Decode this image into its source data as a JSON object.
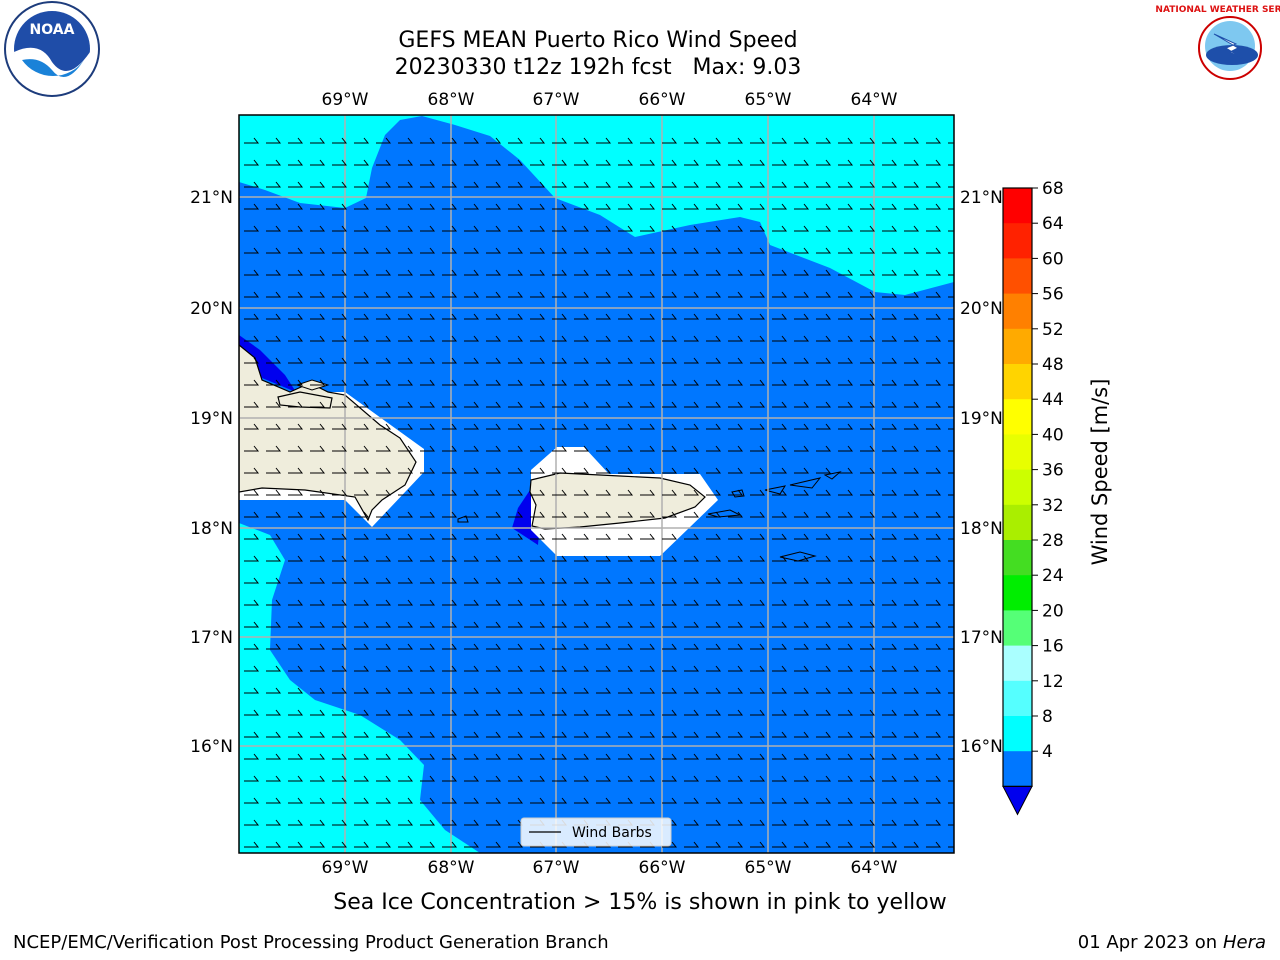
{
  "title": {
    "line1": "GEFS MEAN Puerto Rico Wind Speed",
    "line2": "20230330 t12z 192h fcst   Max: 9.03"
  },
  "subtitle": "Sea Ice Concentration > 15% is shown in pink to yellow",
  "footer": {
    "left": "NCEP/EMC/Verification Post Processing Product Generation Branch",
    "right_prefix": "01 Apr 2023 on ",
    "right_machine": "Hera"
  },
  "logos": {
    "left": "NOAA",
    "right": "NATIONAL WEATHER SERVICE"
  },
  "legend": {
    "label": "Wind Barbs"
  },
  "map": {
    "lon_labels": [
      "69°W",
      "68°W",
      "67°W",
      "66°W",
      "65°W",
      "64°W"
    ],
    "lat_labels": [
      "21°N",
      "20°N",
      "19°N",
      "18°N",
      "17°N",
      "16°N"
    ],
    "land_color": "#efeddc",
    "ocean_fill_low": "#0077ff",
    "ocean_fill_mid": "#00ffff"
  },
  "colorbar": {
    "label": "Wind Speed [m/s]",
    "ticks": [
      "68",
      "64",
      "60",
      "56",
      "52",
      "48",
      "44",
      "40",
      "36",
      "32",
      "28",
      "24",
      "20",
      "16",
      "12",
      "8",
      "4"
    ],
    "colors": [
      "#ff0000",
      "#ff2200",
      "#ff5000",
      "#ff8000",
      "#ffaa00",
      "#ffd400",
      "#ffff00",
      "#e8ff00",
      "#ccff00",
      "#aaee00",
      "#44dd22",
      "#00ee00",
      "#55ff77",
      "#aaffff",
      "#55ffff",
      "#00ffff",
      "#0077ff"
    ],
    "under_color": "#0000ee"
  }
}
